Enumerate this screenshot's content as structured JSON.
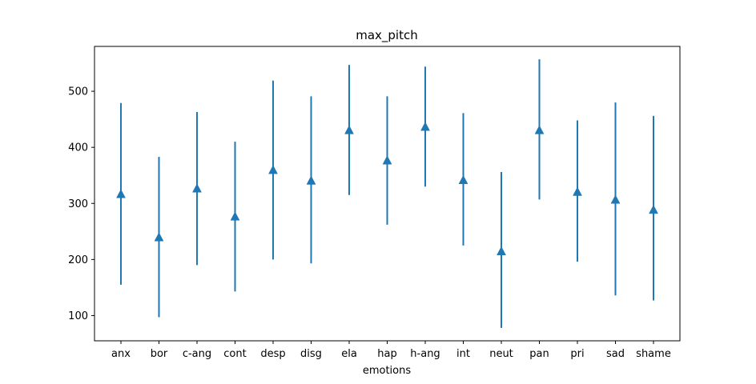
{
  "chart_data": {
    "type": "errorbar",
    "title": "max_pitch",
    "xlabel": "emotions",
    "ylabel": "",
    "categories": [
      "anx",
      "bor",
      "c-ang",
      "cont",
      "desp",
      "disg",
      "ela",
      "hap",
      "h-ang",
      "int",
      "neut",
      "pan",
      "pri",
      "sad",
      "shame"
    ],
    "means": [
      317,
      240,
      327,
      277,
      360,
      341,
      431,
      377,
      437,
      342,
      215,
      431,
      321,
      307,
      289
    ],
    "lower": [
      155,
      97,
      190,
      143,
      200,
      193,
      315,
      262,
      330,
      225,
      78,
      307,
      196,
      136,
      127
    ],
    "upper": [
      479,
      383,
      463,
      410,
      519,
      491,
      547,
      491,
      544,
      461,
      356,
      557,
      448,
      480,
      456
    ],
    "yticks": [
      100,
      200,
      300,
      400,
      500
    ],
    "ylim": [
      55,
      580
    ],
    "marker": "triangle-up",
    "grid": false,
    "color": "#1f77b4"
  }
}
